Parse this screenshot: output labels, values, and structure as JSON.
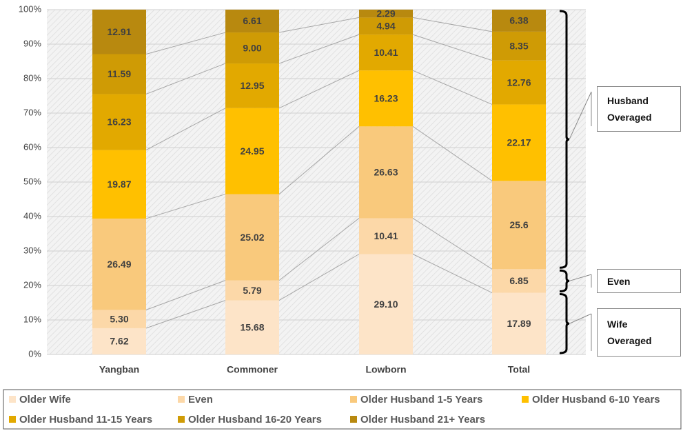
{
  "chart_data": {
    "type": "stacked-bar",
    "categories": [
      "Yangban",
      "Commoner",
      "Lowborn",
      "Total"
    ],
    "series": [
      {
        "name": "Older Wife",
        "color": "#fde4c8",
        "values": [
          7.62,
          15.68,
          29.1,
          17.89
        ],
        "value_labels": [
          "7.62",
          "15.68",
          "29.10",
          "17.89"
        ]
      },
      {
        "name": "Even",
        "color": "#fcd8a8",
        "values": [
          5.3,
          5.79,
          10.41,
          6.85
        ],
        "value_labels": [
          "5.30",
          "5.79",
          "10.41",
          "6.85"
        ]
      },
      {
        "name": "Older Husband 1-5 Years",
        "color": "#f9c97c",
        "values": [
          26.49,
          25.02,
          26.63,
          25.6
        ],
        "value_labels": [
          "26.49",
          "25.02",
          "26.63",
          "25.6"
        ]
      },
      {
        "name": "Older Husband 6-10 Years",
        "color": "#ffc000",
        "values": [
          19.87,
          24.95,
          16.23,
          22.17
        ],
        "value_labels": [
          "19.87",
          "24.95",
          "16.23",
          "22.17"
        ]
      },
      {
        "name": "Older Husband 11-15 Years",
        "color": "#e2a900",
        "values": [
          16.23,
          12.95,
          10.41,
          12.76
        ],
        "value_labels": [
          "16.23",
          "12.95",
          "10.41",
          "12.76"
        ]
      },
      {
        "name": "Older Husband 16-20 Years",
        "color": "#cf9b05",
        "values": [
          11.59,
          9.0,
          4.94,
          8.35
        ],
        "value_labels": [
          "11.59",
          "9.00",
          "4.94",
          "8.35"
        ]
      },
      {
        "name": "Older Husband 21+ Years",
        "color": "#b8890f",
        "values": [
          12.91,
          6.61,
          2.29,
          6.38
        ],
        "value_labels": [
          "12.91",
          "6.61",
          "2.29",
          "6.38"
        ]
      }
    ],
    "ylim": [
      0,
      100
    ],
    "yticks": [
      {
        "value": 0,
        "label": "0%"
      },
      {
        "value": 10,
        "label": "10%"
      },
      {
        "value": 20,
        "label": "20%"
      },
      {
        "value": 30,
        "label": "30%"
      },
      {
        "value": 40,
        "label": "40%"
      },
      {
        "value": 50,
        "label": "50%"
      },
      {
        "value": 60,
        "label": "60%"
      },
      {
        "value": 70,
        "label": "70%"
      },
      {
        "value": 80,
        "label": "80%"
      },
      {
        "value": 90,
        "label": "90%"
      },
      {
        "value": 100,
        "label": "100%"
      }
    ],
    "grid": true,
    "annotations": [
      "Husband Overaged",
      "Even",
      "Wife Overaged"
    ]
  }
}
